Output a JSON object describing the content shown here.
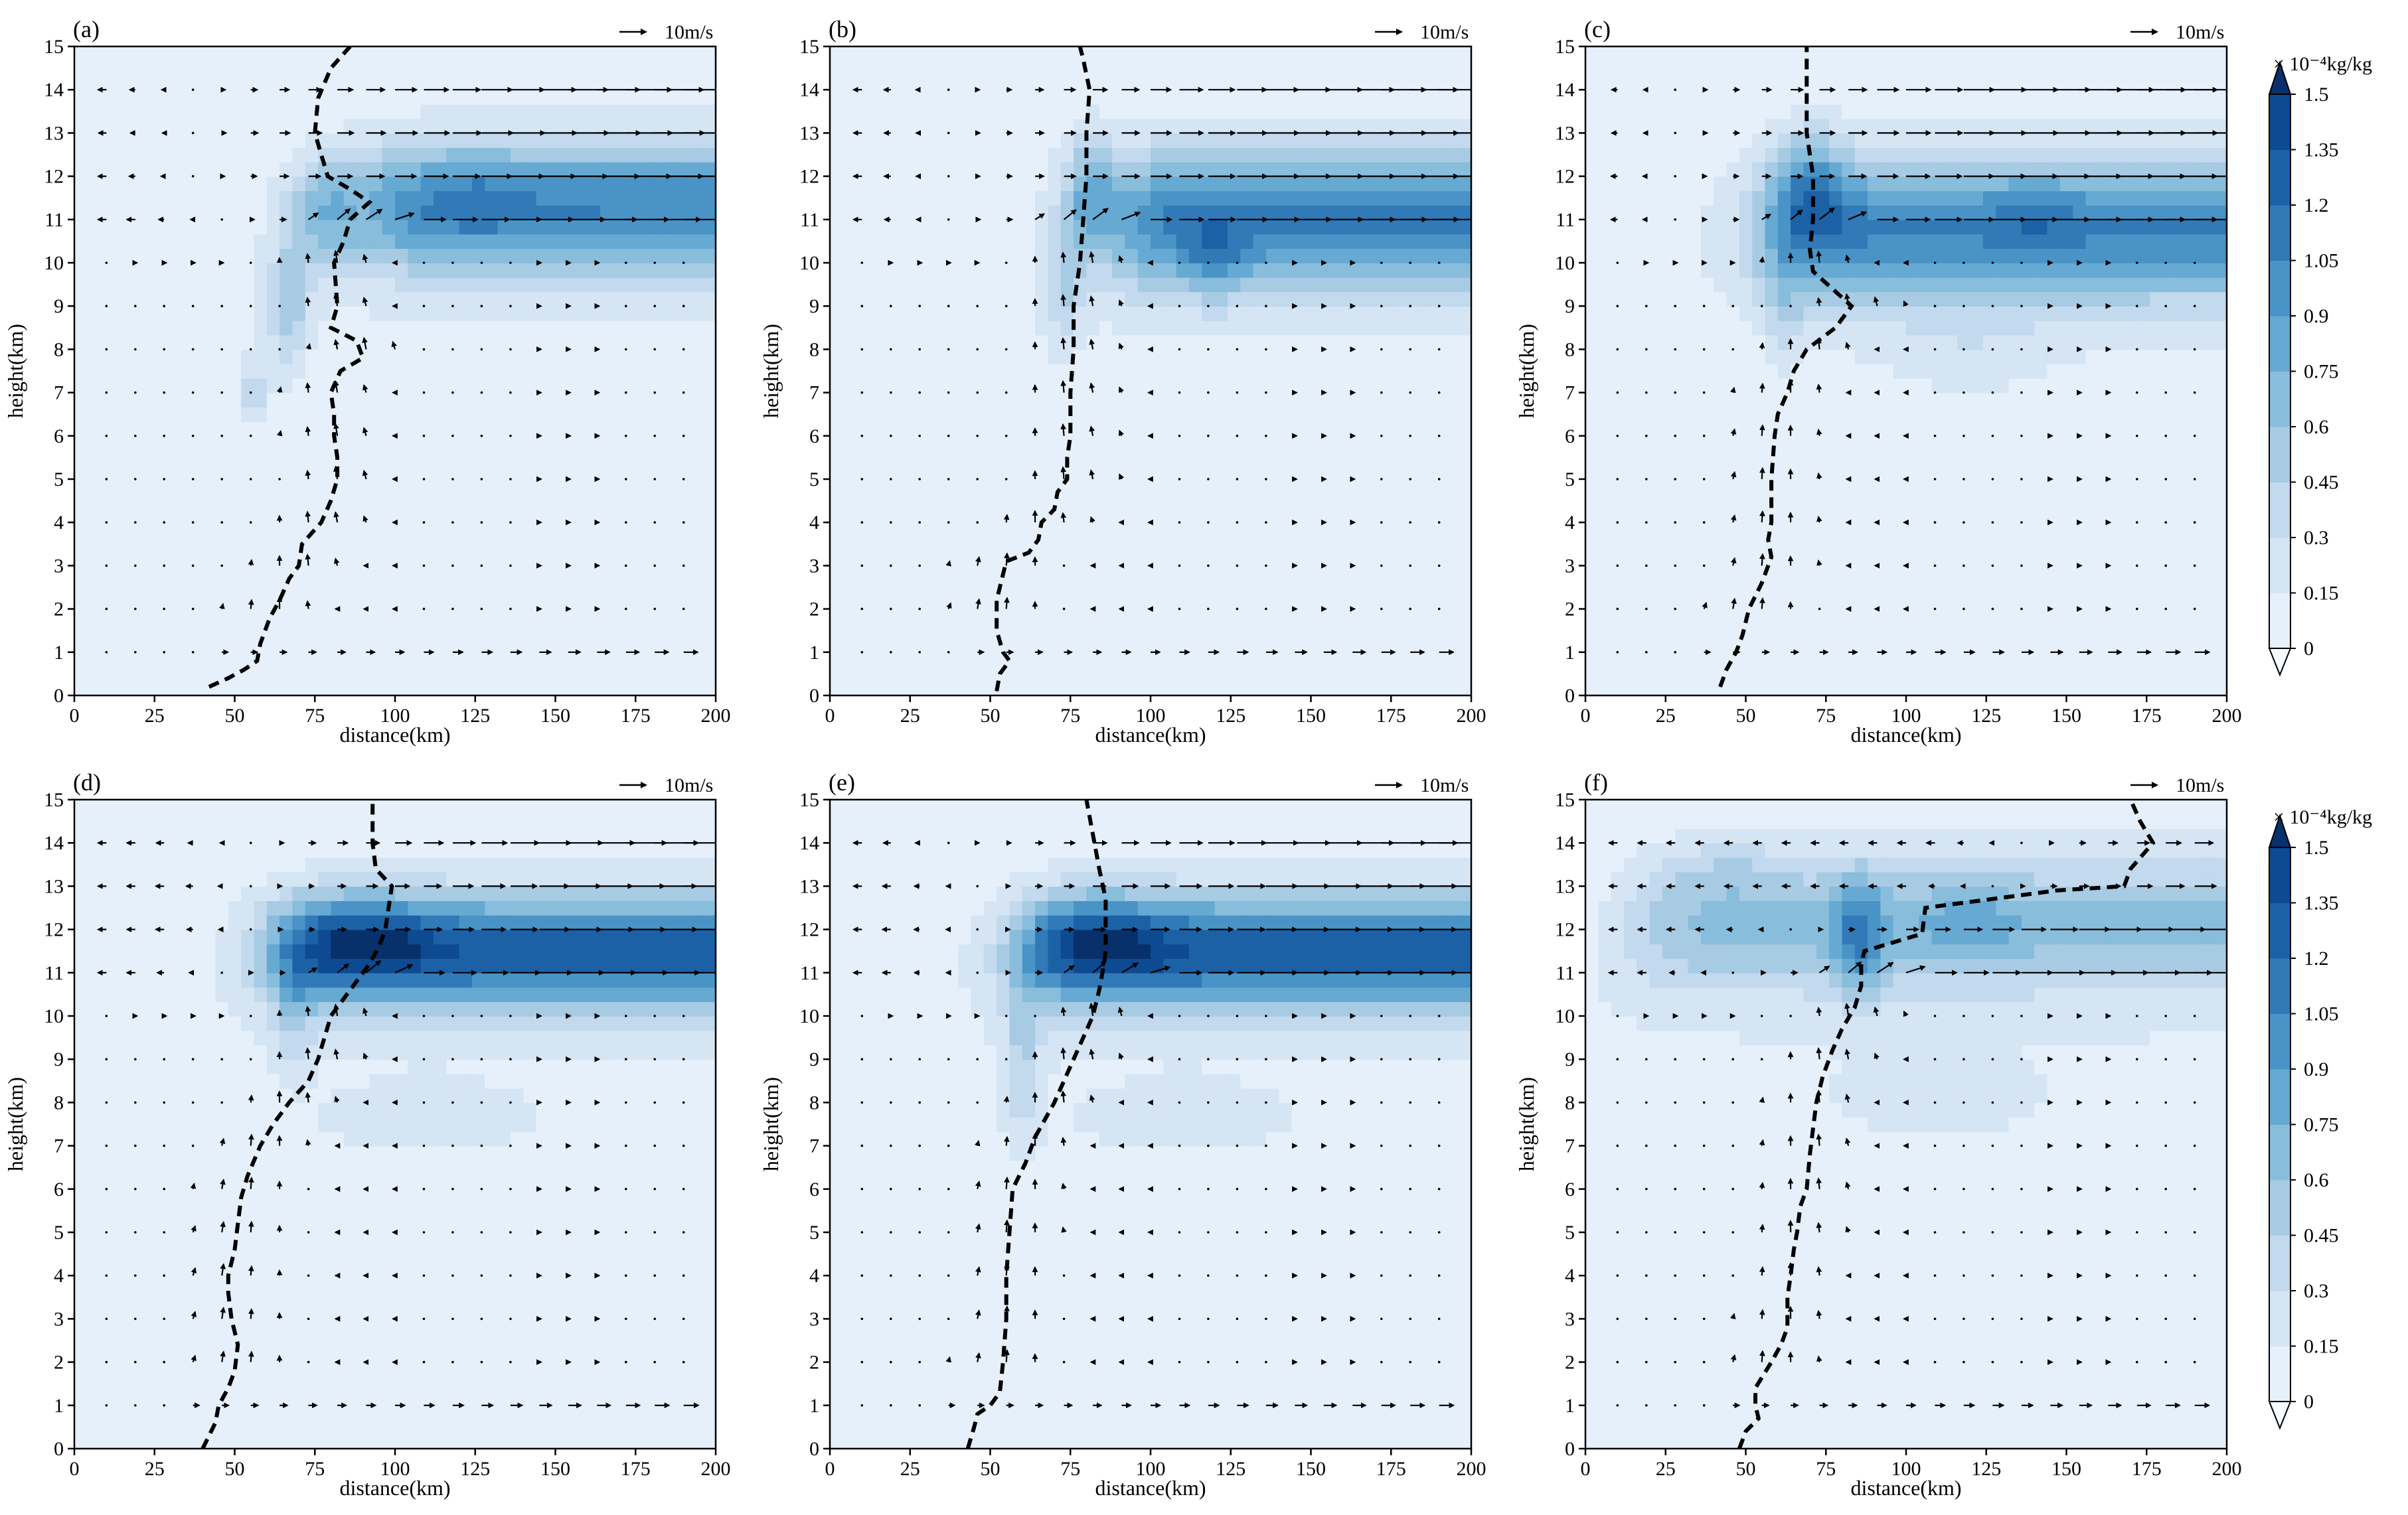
{
  "figure": {
    "panel_labels": [
      "(a)",
      "(b)",
      "(c)",
      "(d)",
      "(e)",
      "(f)"
    ],
    "xlabel": "distance(km)",
    "ylabel": "height(km)",
    "vector_key_label": "10m/s",
    "colorbar": {
      "unit_label": "× 10⁻⁴kg/kg",
      "levels": [
        0,
        0.15,
        0.3,
        0.45,
        0.6,
        0.75,
        0.9,
        1.05,
        1.2,
        1.35,
        1.5
      ],
      "tick_labels": [
        "0",
        "0.15",
        "0.3",
        "0.45",
        "0.6",
        "0.75",
        "0.9",
        "1.05",
        "1.2",
        "1.35",
        "1.5"
      ],
      "colors": [
        "#f7fbff",
        "#e6f0fa",
        "#d5e5f4",
        "#c2d9ee",
        "#a8cbe4",
        "#88bddc",
        "#66a9d2",
        "#4a93c6",
        "#3179b7",
        "#1c61a6",
        "#0d4a92",
        "#08306b"
      ]
    }
  },
  "chart_data": [
    {
      "panel": "(a)",
      "type": "contourf+quiver+line",
      "title": "",
      "xlabel": "distance(km)",
      "ylabel": "height(km)",
      "xlim": [
        0,
        200
      ],
      "ylim": [
        0,
        15
      ],
      "xticks": [
        0,
        25,
        50,
        75,
        100,
        125,
        150,
        175,
        200
      ],
      "yticks": [
        0,
        1,
        2,
        3,
        4,
        5,
        6,
        7,
        8,
        9,
        10,
        11,
        12,
        13,
        14,
        15
      ],
      "field": {
        "units": "1e-4 kg/kg",
        "anvil": {
          "xStart": 90,
          "yCenter": 11.3,
          "ySigma": 1.5,
          "peak": 0.95
        },
        "core": [
          {
            "x": 78,
            "y": 11.2,
            "sx": 11,
            "sy": 1.3,
            "a": 0.55
          },
          {
            "x": 67,
            "y": 9.0,
            "sx": 6,
            "sy": 1.5,
            "a": 0.45
          },
          {
            "x": 56,
            "y": 7.0,
            "sx": 5,
            "sy": 0.9,
            "a": 0.3
          },
          {
            "x": 125,
            "y": 11.5,
            "sx": 14,
            "sy": 0.9,
            "a": 0.15
          }
        ]
      },
      "dashed_line": [
        [
          42,
          0.2
        ],
        [
          48,
          0.4
        ],
        [
          53,
          0.6
        ],
        [
          57,
          0.8
        ],
        [
          58,
          1.2
        ],
        [
          61,
          1.8
        ],
        [
          64,
          2.2
        ],
        [
          67,
          2.7
        ],
        [
          70,
          3.0
        ],
        [
          71,
          3.5
        ],
        [
          77,
          4.0
        ],
        [
          80,
          4.5
        ],
        [
          82,
          5.0
        ],
        [
          82,
          5.5
        ],
        [
          81,
          6.0
        ],
        [
          81,
          6.5
        ],
        [
          80,
          7.0
        ],
        [
          83,
          7.5
        ],
        [
          90,
          7.8
        ],
        [
          88,
          8.2
        ],
        [
          80,
          8.5
        ],
        [
          82,
          9.0
        ],
        [
          81,
          10.0
        ],
        [
          84,
          10.5
        ],
        [
          86,
          11.0
        ],
        [
          92,
          11.4
        ],
        [
          86,
          11.7
        ],
        [
          79,
          12.0
        ],
        [
          77,
          12.5
        ],
        [
          75,
          13.0
        ],
        [
          76,
          13.8
        ],
        [
          80,
          14.5
        ],
        [
          86,
          15.0
        ]
      ]
    },
    {
      "panel": "(b)",
      "type": "contourf+quiver+line",
      "title": "",
      "xlabel": "distance(km)",
      "ylabel": "height(km)",
      "xlim": [
        0,
        200
      ],
      "ylim": [
        0,
        15
      ],
      "xticks": [
        0,
        25,
        50,
        75,
        100,
        125,
        150,
        175,
        200
      ],
      "yticks": [
        0,
        1,
        2,
        3,
        4,
        5,
        6,
        7,
        8,
        9,
        10,
        11,
        12,
        13,
        14,
        15
      ],
      "field": {
        "units": "1e-4 kg/kg",
        "anvil": {
          "xStart": 88,
          "yCenter": 11.0,
          "ySigma": 1.6,
          "peak": 1.0
        },
        "core": [
          {
            "x": 81,
            "y": 11.6,
            "sx": 8,
            "sy": 1.4,
            "a": 0.55
          },
          {
            "x": 73,
            "y": 9.5,
            "sx": 6,
            "sy": 1.6,
            "a": 0.35
          },
          {
            "x": 120,
            "y": 10.1,
            "sx": 9,
            "sy": 0.9,
            "a": 0.3
          }
        ]
      },
      "dashed_line": [
        [
          52,
          0.1
        ],
        [
          53,
          0.5
        ],
        [
          56,
          0.8
        ],
        [
          54,
          1.0
        ],
        [
          52,
          1.5
        ],
        [
          52,
          2.2
        ],
        [
          54,
          2.8
        ],
        [
          55,
          3.1
        ],
        [
          62,
          3.3
        ],
        [
          65,
          3.6
        ],
        [
          66,
          4.0
        ],
        [
          70,
          4.3
        ],
        [
          71,
          4.7
        ],
        [
          74,
          5.0
        ],
        [
          74,
          5.5
        ],
        [
          75,
          6.0
        ],
        [
          75,
          7.0
        ],
        [
          76,
          8.0
        ],
        [
          76,
          9.0
        ],
        [
          78,
          10.0
        ],
        [
          79,
          11.0
        ],
        [
          80,
          12.0
        ],
        [
          80,
          13.0
        ],
        [
          81,
          14.0
        ],
        [
          79,
          14.7
        ],
        [
          78,
          15.0
        ]
      ]
    },
    {
      "panel": "(c)",
      "type": "contourf+quiver+line",
      "title": "",
      "xlabel": "distance(km)",
      "ylabel": "height(km)",
      "xlim": [
        0,
        200
      ],
      "ylim": [
        0,
        15
      ],
      "xticks": [
        0,
        25,
        50,
        75,
        100,
        125,
        150,
        175,
        200
      ],
      "yticks": [
        0,
        1,
        2,
        3,
        4,
        5,
        6,
        7,
        8,
        9,
        10,
        11,
        12,
        13,
        14,
        15
      ],
      "field": {
        "units": "1e-4 kg/kg",
        "anvil": {
          "xStart": 55,
          "yCenter": 10.8,
          "ySigma": 1.6,
          "peak": 0.95
        },
        "core": [
          {
            "x": 70,
            "y": 11.8,
            "sx": 11,
            "sy": 1.3,
            "a": 0.5
          },
          {
            "x": 62,
            "y": 9.0,
            "sx": 6,
            "sy": 1.3,
            "a": 0.25
          },
          {
            "x": 140,
            "y": 11.0,
            "sx": 10,
            "sy": 1.0,
            "a": 0.15
          },
          {
            "x": 120,
            "y": 8.0,
            "sx": 30,
            "sy": 1.2,
            "a": 0.15
          }
        ]
      },
      "dashed_line": [
        [
          42,
          0.2
        ],
        [
          44,
          0.6
        ],
        [
          47,
          1.0
        ],
        [
          49,
          1.4
        ],
        [
          51,
          2.0
        ],
        [
          55,
          2.6
        ],
        [
          58,
          3.2
        ],
        [
          57,
          3.6
        ],
        [
          58,
          4.0
        ],
        [
          58,
          5.0
        ],
        [
          59,
          6.0
        ],
        [
          60,
          6.5
        ],
        [
          63,
          7.0
        ],
        [
          65,
          7.5
        ],
        [
          69,
          8.0
        ],
        [
          78,
          8.5
        ],
        [
          83,
          9.0
        ],
        [
          77,
          9.4
        ],
        [
          71,
          9.8
        ],
        [
          70,
          10.3
        ],
        [
          71,
          11.0
        ],
        [
          71,
          12.0
        ],
        [
          69,
          13.0
        ],
        [
          69,
          14.0
        ],
        [
          69,
          15.0
        ]
      ]
    },
    {
      "panel": "(d)",
      "type": "contourf+quiver+line",
      "title": "",
      "xlabel": "distance(km)",
      "ylabel": "height(km)",
      "xlim": [
        0,
        200
      ],
      "ylim": [
        0,
        15
      ],
      "xticks": [
        0,
        25,
        50,
        75,
        100,
        125,
        150,
        175,
        200
      ],
      "yticks": [
        0,
        1,
        2,
        3,
        4,
        5,
        6,
        7,
        8,
        9,
        10,
        11,
        12,
        13,
        14,
        15
      ],
      "field": {
        "units": "1e-4 kg/kg",
        "anvil": {
          "xStart": 62,
          "yCenter": 11.5,
          "ySigma": 1.3,
          "peak": 1.2
        },
        "core": [
          {
            "x": 90,
            "y": 11.8,
            "sx": 22,
            "sy": 1.0,
            "a": 0.4
          },
          {
            "x": 68,
            "y": 10.0,
            "sx": 6,
            "sy": 1.2,
            "a": 0.3
          },
          {
            "x": 110,
            "y": 7.5,
            "sx": 40,
            "sy": 1.0,
            "a": 0.15
          }
        ]
      },
      "dashed_line": [
        [
          40,
          0.0
        ],
        [
          42,
          0.3
        ],
        [
          44,
          0.6
        ],
        [
          45,
          1.0
        ],
        [
          48,
          1.4
        ],
        [
          50,
          1.8
        ],
        [
          51,
          2.4
        ],
        [
          49,
          3.0
        ],
        [
          48,
          3.6
        ],
        [
          48,
          4.0
        ],
        [
          50,
          4.6
        ],
        [
          51,
          5.2
        ],
        [
          52,
          5.8
        ],
        [
          54,
          6.3
        ],
        [
          58,
          7.0
        ],
        [
          62,
          7.5
        ],
        [
          67,
          8.0
        ],
        [
          73,
          8.5
        ],
        [
          76,
          9.0
        ],
        [
          78,
          9.5
        ],
        [
          80,
          10.0
        ],
        [
          86,
          10.6
        ],
        [
          92,
          11.2
        ],
        [
          95,
          11.6
        ],
        [
          97,
          12.0
        ],
        [
          98,
          12.5
        ],
        [
          99,
          13.0
        ],
        [
          94,
          13.4
        ],
        [
          93,
          14.0
        ],
        [
          93,
          15.0
        ]
      ]
    },
    {
      "panel": "(e)",
      "type": "contourf+quiver+line",
      "title": "",
      "xlabel": "distance(km)",
      "ylabel": "height(km)",
      "xlim": [
        0,
        200
      ],
      "ylim": [
        0,
        15
      ],
      "xticks": [
        0,
        25,
        50,
        75,
        100,
        125,
        150,
        175,
        200
      ],
      "yticks": [
        0,
        1,
        2,
        3,
        4,
        5,
        6,
        7,
        8,
        9,
        10,
        11,
        12,
        13,
        14,
        15
      ],
      "field": {
        "units": "1e-4 kg/kg",
        "anvil": {
          "xStart": 60,
          "yCenter": 11.5,
          "ySigma": 1.3,
          "peak": 1.2
        },
        "core": [
          {
            "x": 85,
            "y": 11.8,
            "sx": 20,
            "sy": 1.0,
            "a": 0.4
          },
          {
            "x": 60,
            "y": 9.0,
            "sx": 6,
            "sy": 2.0,
            "a": 0.35
          },
          {
            "x": 110,
            "y": 7.5,
            "sx": 40,
            "sy": 1.0,
            "a": 0.15
          }
        ]
      },
      "dashed_line": [
        [
          43,
          0.0
        ],
        [
          45,
          0.5
        ],
        [
          46,
          0.8
        ],
        [
          50,
          1.0
        ],
        [
          53,
          1.3
        ],
        [
          54,
          2.0
        ],
        [
          55,
          3.0
        ],
        [
          55,
          4.0
        ],
        [
          56,
          5.0
        ],
        [
          57,
          6.0
        ],
        [
          61,
          6.6
        ],
        [
          64,
          7.2
        ],
        [
          67,
          7.6
        ],
        [
          70,
          8.0
        ],
        [
          73,
          8.5
        ],
        [
          76,
          9.0
        ],
        [
          79,
          9.5
        ],
        [
          82,
          10.0
        ],
        [
          84,
          10.6
        ],
        [
          85,
          11.0
        ],
        [
          86,
          11.5
        ],
        [
          86,
          12.0
        ],
        [
          86,
          12.7
        ],
        [
          84,
          13.4
        ],
        [
          82,
          14.2
        ],
        [
          80,
          15.0
        ]
      ]
    },
    {
      "panel": "(f)",
      "type": "contourf+quiver+line",
      "title": "",
      "xlabel": "distance(km)",
      "ylabel": "height(km)",
      "xlim": [
        0,
        200
      ],
      "ylim": [
        0,
        15
      ],
      "xticks": [
        0,
        25,
        50,
        75,
        100,
        125,
        150,
        175,
        200
      ],
      "yticks": [
        0,
        1,
        2,
        3,
        4,
        5,
        6,
        7,
        8,
        9,
        10,
        11,
        12,
        13,
        14,
        15
      ],
      "field": {
        "units": "1e-4 kg/kg",
        "anvil": {
          "xStart": 15,
          "yCenter": 12.2,
          "ySigma": 1.6,
          "peak": 0.55
        },
        "core": [
          {
            "x": 85,
            "y": 11.8,
            "sx": 8,
            "sy": 1.4,
            "a": 0.55
          },
          {
            "x": 120,
            "y": 12.0,
            "sx": 18,
            "sy": 0.9,
            "a": 0.25
          },
          {
            "x": 45,
            "y": 13.5,
            "sx": 15,
            "sy": 0.8,
            "a": 0.15
          },
          {
            "x": 110,
            "y": 8.0,
            "sx": 35,
            "sy": 1.0,
            "a": 0.15
          }
        ]
      },
      "dashed_line": [
        [
          48,
          0.0
        ],
        [
          50,
          0.4
        ],
        [
          54,
          0.7
        ],
        [
          53,
          1.0
        ],
        [
          53,
          1.4
        ],
        [
          58,
          2.0
        ],
        [
          61,
          2.4
        ],
        [
          63,
          2.8
        ],
        [
          63,
          3.5
        ],
        [
          64,
          4.0
        ],
        [
          65,
          4.6
        ],
        [
          66,
          5.0
        ],
        [
          67,
          5.6
        ],
        [
          69,
          6.0
        ],
        [
          70,
          6.8
        ],
        [
          71,
          7.4
        ],
        [
          72,
          8.0
        ],
        [
          74,
          8.6
        ],
        [
          77,
          9.2
        ],
        [
          80,
          9.7
        ],
        [
          84,
          10.2
        ],
        [
          86,
          10.7
        ],
        [
          86,
          11.2
        ],
        [
          87,
          11.5
        ],
        [
          105,
          11.9
        ],
        [
          106,
          12.5
        ],
        [
          147,
          12.9
        ],
        [
          168,
          13.0
        ],
        [
          170,
          13.4
        ],
        [
          177,
          14.0
        ],
        [
          173,
          14.5
        ],
        [
          170,
          15.0
        ]
      ]
    }
  ]
}
